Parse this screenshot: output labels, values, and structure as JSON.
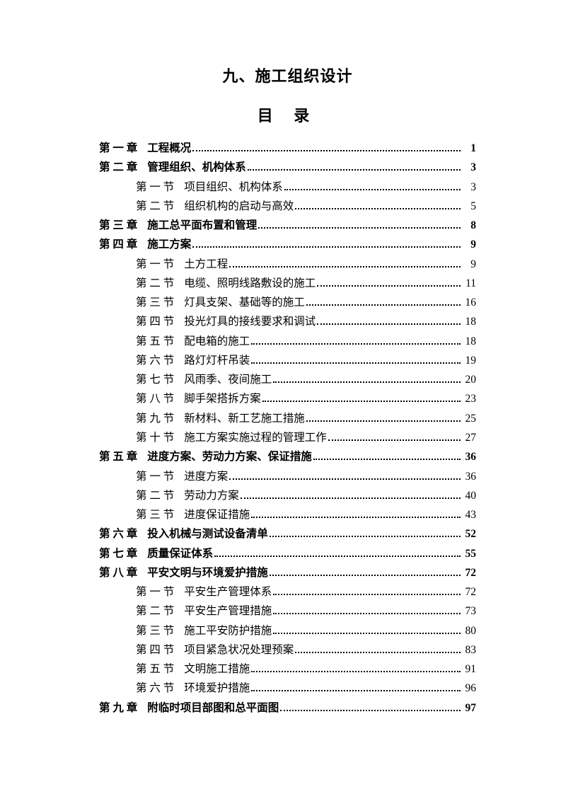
{
  "document": {
    "title": "九、施工组织设计",
    "toc_label": "目 录",
    "fontsize_title": 22,
    "fontsize_body": 15.5,
    "text_color": "#000000",
    "background_color": "#ffffff"
  },
  "toc": [
    {
      "level": "chapter",
      "label": "第 一 章",
      "title": "工程概况",
      "page": "1"
    },
    {
      "level": "chapter",
      "label": "第 二 章",
      "title": "管理组织、机构体系",
      "page": "3"
    },
    {
      "level": "section",
      "label": "第 一 节",
      "title": "项目组织、机构体系",
      "page": "3"
    },
    {
      "level": "section",
      "label": "第 二 节",
      "title": "组织机构的启动与高效",
      "page": "5"
    },
    {
      "level": "chapter",
      "label": "第 三 章",
      "title": "施工总平面布置和管理",
      "page": "8"
    },
    {
      "level": "chapter",
      "label": "第 四 章",
      "title": "施工方案",
      "page": "9"
    },
    {
      "level": "section",
      "label": "第 一 节",
      "title": "土方工程",
      "page": "9"
    },
    {
      "level": "section",
      "label": "第 二 节",
      "title": "电缆、照明线路敷设的施工",
      "page": "11"
    },
    {
      "level": "section",
      "label": "第 三 节",
      "title": "灯具支架、基础等的施工",
      "page": "16"
    },
    {
      "level": "section",
      "label": "第 四 节",
      "title": "投光灯具的接线要求和调试",
      "page": "18"
    },
    {
      "level": "section",
      "label": "第 五 节",
      "title": "配电箱的施工",
      "page": "18"
    },
    {
      "level": "section",
      "label": "第 六 节",
      "title": "路灯灯杆吊装",
      "page": "19"
    },
    {
      "level": "section",
      "label": "第 七 节",
      "title": "风雨季、夜间施工",
      "page": "20"
    },
    {
      "level": "section",
      "label": "第 八 节",
      "title": "脚手架搭拆方案",
      "page": "23"
    },
    {
      "level": "section",
      "label": "第 九 节",
      "title": "新材料、新工艺施工措施",
      "page": "25"
    },
    {
      "level": "section",
      "label": "第 十 节",
      "title": "施工方案实施过程的管理工作",
      "page": "27"
    },
    {
      "level": "chapter",
      "label": "第 五 章",
      "title": "进度方案、劳动力方案、保证措施",
      "page": "36"
    },
    {
      "level": "section",
      "label": "第 一 节",
      "title": "进度方案",
      "page": "36"
    },
    {
      "level": "section",
      "label": "第 二 节",
      "title": "劳动力方案",
      "page": "40"
    },
    {
      "level": "section",
      "label": "第 三 节",
      "title": "进度保证措施",
      "page": "43"
    },
    {
      "level": "chapter",
      "label": "第 六 章",
      "title": "投入机械与测试设备清单",
      "page": "52"
    },
    {
      "level": "chapter",
      "label": "第 七 章",
      "title": "质量保证体系",
      "page": "55"
    },
    {
      "level": "chapter",
      "label": "第 八 章",
      "title": "平安文明与环境爱护措施",
      "page": "72"
    },
    {
      "level": "section",
      "label": "第 一 节",
      "title": "平安生产管理体系",
      "page": "72"
    },
    {
      "level": "section",
      "label": "第 二 节",
      "title": "平安生产管理措施",
      "page": "73"
    },
    {
      "level": "section",
      "label": "第 三 节",
      "title": "施工平安防护措施",
      "page": "80"
    },
    {
      "level": "section",
      "label": "第 四 节",
      "title": "项目紧急状况处理预案",
      "page": "83"
    },
    {
      "level": "section",
      "label": "第 五 节",
      "title": "文明施工措施",
      "page": "91"
    },
    {
      "level": "section",
      "label": "第 六 节",
      "title": "环境爱护措施",
      "page": "96"
    },
    {
      "level": "chapter",
      "label": "第 九 章",
      "title": "附临时项目部图和总平面图",
      "page": "97"
    }
  ]
}
